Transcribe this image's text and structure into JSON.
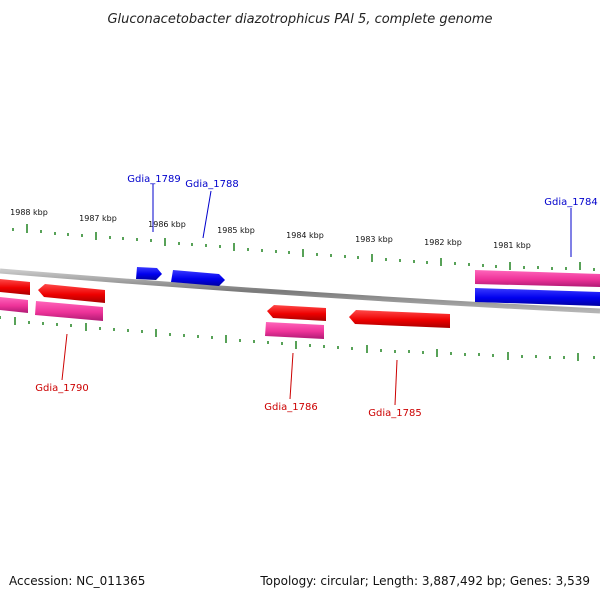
{
  "title": "Gluconacetobacter diazotrophicus PAl 5, complete genome",
  "footer": {
    "accession": "Accession: NC_011365",
    "summary": "Topology: circular; Length: 3,887,492 bp; Genes: 3,539"
  },
  "colors": {
    "backbone": "#8c8c8c",
    "tick": "#2e8b2e",
    "forward_gene": "#0000ee",
    "reverse_gene": "#ee0000",
    "reverse_cds": "#ee3399",
    "forward_label": "#0000cc",
    "reverse_label": "#cc0000"
  },
  "scale": {
    "unit": "kbp",
    "labels": [
      "1988 kbp",
      "1987 kbp",
      "1986 kbp",
      "1985 kbp",
      "1984 kbp",
      "1983 kbp",
      "1982 kbp",
      "1981 kbp"
    ]
  },
  "genes": [
    {
      "id": "Gdia_1789",
      "strand": "+"
    },
    {
      "id": "Gdia_1788",
      "strand": "+"
    },
    {
      "id": "Gdia_1784",
      "strand": "+"
    },
    {
      "id": "Gdia_1790",
      "strand": "-"
    },
    {
      "id": "Gdia_1786",
      "strand": "-"
    },
    {
      "id": "Gdia_1785",
      "strand": "-"
    }
  ]
}
